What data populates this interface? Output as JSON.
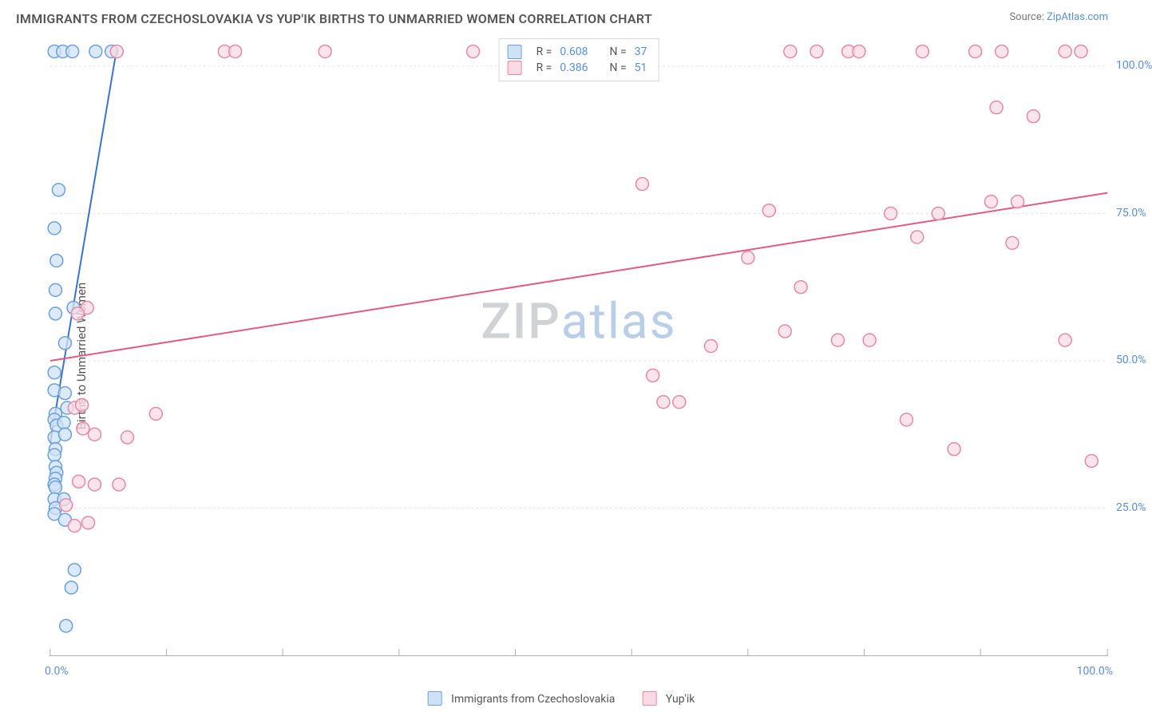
{
  "title": "IMMIGRANTS FROM CZECHOSLOVAKIA VS YUP'IK BIRTHS TO UNMARRIED WOMEN CORRELATION CHART",
  "source_label": "Source:",
  "source_name": "ZipAtlas.com",
  "y_axis_label": "Births to Unmarried Women",
  "chart": {
    "type": "scatter",
    "xlim": [
      0,
      100
    ],
    "ylim": [
      0,
      105
    ],
    "yticks": [
      25,
      50,
      75,
      100
    ],
    "ytick_labels": [
      "25.0%",
      "50.0%",
      "75.0%",
      "100.0%"
    ],
    "xtick_labels": {
      "min": "0.0%",
      "max": "100.0%"
    },
    "xtick_positions": [
      0,
      11,
      22,
      33,
      44,
      55,
      66,
      77,
      88,
      100
    ],
    "grid_color": "#e3e3e3",
    "axis_color": "#b0b0b0",
    "marker_radius": 8,
    "marker_stroke_width": 1.5,
    "line_width": 2,
    "background_color": "#ffffff"
  },
  "series": [
    {
      "name": "Immigrants from Czechoslovakia",
      "fill_color": "#cfe1f5",
      "stroke_color": "#6aa0de",
      "line_color": "#3a74c4",
      "r_value": "0.608",
      "n_value": "37",
      "trend": {
        "x1": 0,
        "y1": 36,
        "x2": 6.3,
        "y2": 103
      },
      "points": [
        [
          0.4,
          102.5
        ],
        [
          1.2,
          102.5
        ],
        [
          2.1,
          102.5
        ],
        [
          4.3,
          102.5
        ],
        [
          5.8,
          102.5
        ],
        [
          0.8,
          79
        ],
        [
          0.4,
          72.5
        ],
        [
          0.6,
          67
        ],
        [
          0.5,
          62
        ],
        [
          2.2,
          59
        ],
        [
          0.5,
          58
        ],
        [
          1.4,
          53
        ],
        [
          0.4,
          48
        ],
        [
          0.4,
          45
        ],
        [
          1.4,
          44.5
        ],
        [
          1.6,
          42
        ],
        [
          0.5,
          41
        ],
        [
          0.4,
          40
        ],
        [
          0.6,
          39
        ],
        [
          1.3,
          39.5
        ],
        [
          0.4,
          37
        ],
        [
          1.4,
          37.5
        ],
        [
          0.5,
          35
        ],
        [
          0.4,
          34
        ],
        [
          0.5,
          32
        ],
        [
          0.6,
          31
        ],
        [
          0.5,
          30
        ],
        [
          0.4,
          29
        ],
        [
          0.5,
          28.5
        ],
        [
          0.4,
          26.5
        ],
        [
          1.3,
          26.5
        ],
        [
          0.5,
          25
        ],
        [
          0.4,
          24
        ],
        [
          1.4,
          23
        ],
        [
          2.3,
          14.5
        ],
        [
          2.0,
          11.5
        ],
        [
          1.5,
          5
        ]
      ]
    },
    {
      "name": "Yup'ik",
      "fill_color": "#fadbe4",
      "stroke_color": "#e689a4",
      "line_color": "#e35a84",
      "r_value": "0.386",
      "n_value": "51",
      "trend": {
        "x1": 0,
        "y1": 50,
        "x2": 100,
        "y2": 78.5
      },
      "points": [
        [
          6.3,
          102.5
        ],
        [
          16.5,
          102.5
        ],
        [
          17.5,
          102.5
        ],
        [
          26,
          102.5
        ],
        [
          40,
          102.5
        ],
        [
          70,
          102.5
        ],
        [
          72.5,
          102.5
        ],
        [
          75.5,
          102.5
        ],
        [
          76.5,
          102.5
        ],
        [
          82.5,
          102.5
        ],
        [
          87.5,
          102.5
        ],
        [
          90,
          102.5
        ],
        [
          96,
          102.5
        ],
        [
          97.5,
          102.5
        ],
        [
          89.5,
          93
        ],
        [
          93,
          91.5
        ],
        [
          56,
          80
        ],
        [
          89,
          77
        ],
        [
          91.5,
          77
        ],
        [
          68,
          75.5
        ],
        [
          79.5,
          75
        ],
        [
          84,
          75
        ],
        [
          82,
          71
        ],
        [
          91,
          70
        ],
        [
          66,
          67.5
        ],
        [
          71,
          62.5
        ],
        [
          3.5,
          59
        ],
        [
          2.6,
          58
        ],
        [
          69.5,
          55
        ],
        [
          77.5,
          53.5
        ],
        [
          74.5,
          53.5
        ],
        [
          96,
          53.5
        ],
        [
          62.5,
          52.5
        ],
        [
          57,
          47.5
        ],
        [
          58,
          43
        ],
        [
          59.5,
          43
        ],
        [
          2.3,
          42
        ],
        [
          3.0,
          42.5
        ],
        [
          10,
          41
        ],
        [
          81,
          40
        ],
        [
          3.1,
          38.5
        ],
        [
          4.2,
          37.5
        ],
        [
          7.3,
          37
        ],
        [
          85.5,
          35
        ],
        [
          98.5,
          33
        ],
        [
          4.2,
          29
        ],
        [
          2.7,
          29.5
        ],
        [
          6.5,
          29
        ],
        [
          1.5,
          25.5
        ],
        [
          3.6,
          22.5
        ],
        [
          2.3,
          22
        ]
      ]
    }
  ],
  "watermark": {
    "part1": "ZIP",
    "part2": "atlas"
  },
  "legend_labels": {
    "r": "R =",
    "n": "N ="
  }
}
